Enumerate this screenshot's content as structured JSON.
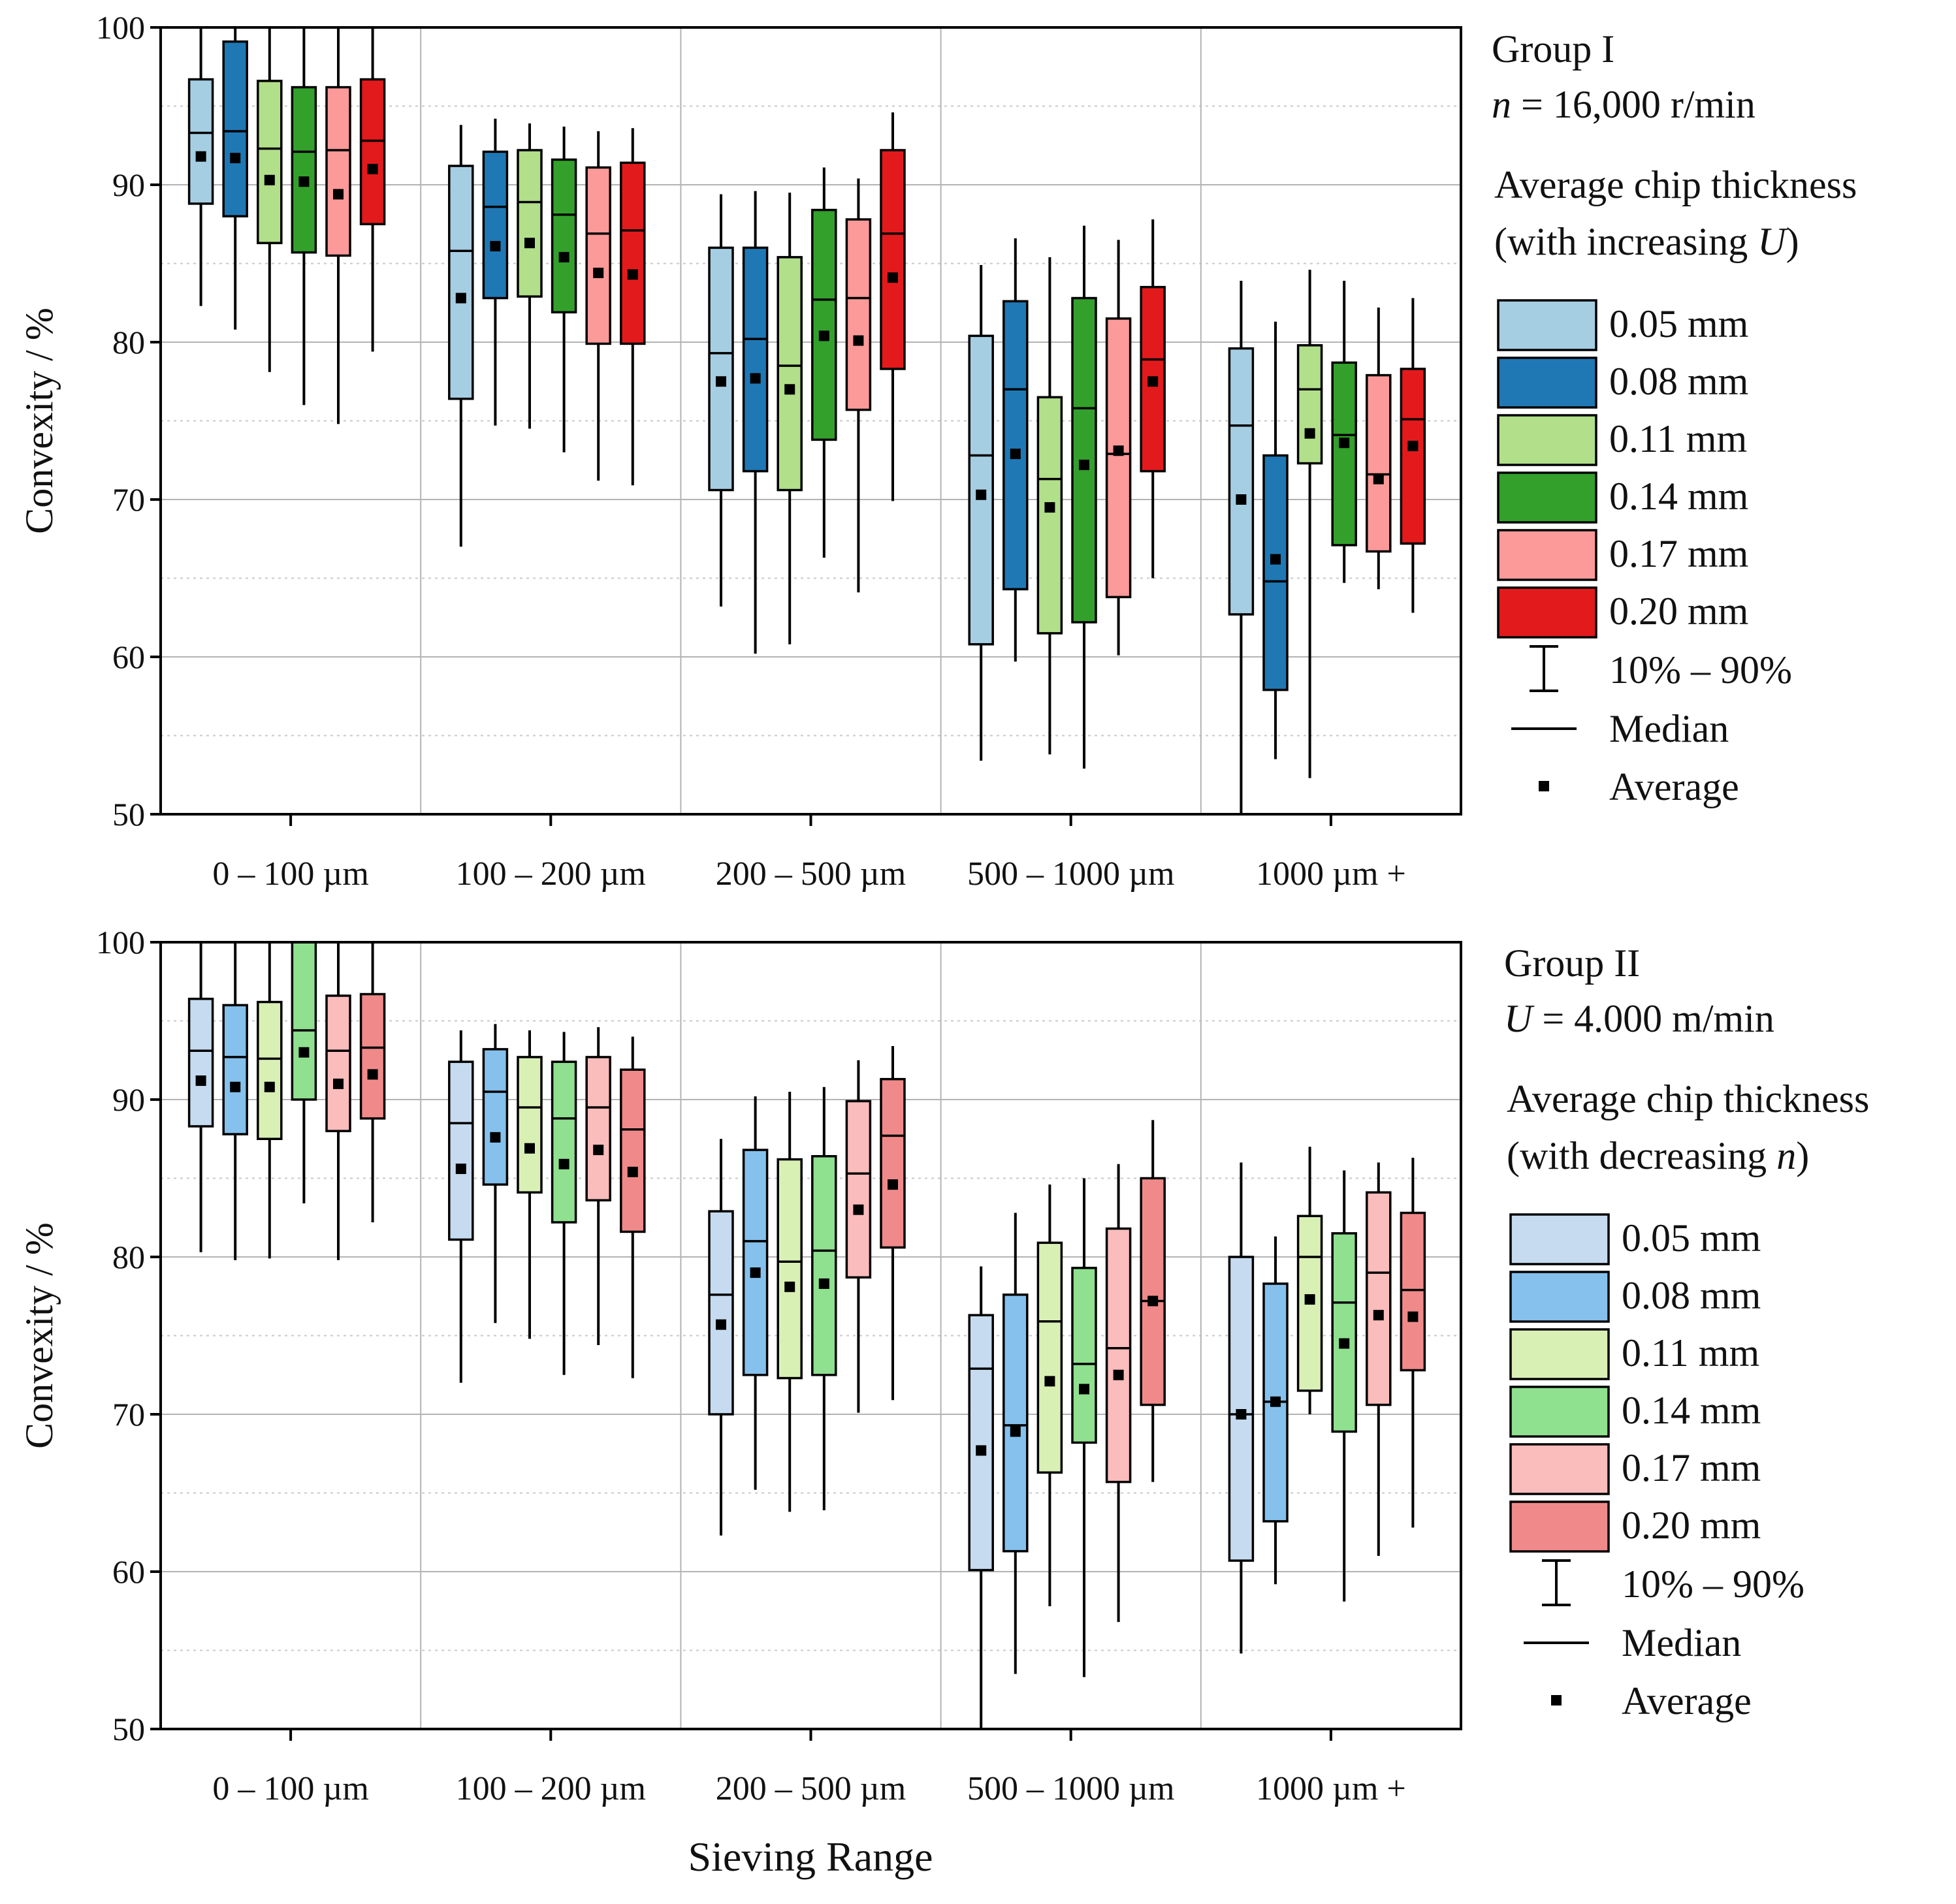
{
  "x_axis_title": "Sieving Range",
  "legend_symbols": {
    "range": "10% – 90%",
    "median": "Median",
    "average": "Average"
  },
  "chart_data": [
    {
      "type": "box",
      "group_title": "Group I",
      "condition": {
        "var": "n",
        "value": " = 16,000 r/min"
      },
      "legend_title_line1": "Average chip thickness",
      "legend_title_line2_prefix": "(with increasing ",
      "legend_title_line2_var": "U",
      "legend_title_line2_suffix": ")",
      "ylabel": "Convexity / %",
      "ylim": [
        50,
        100
      ],
      "yticks": [
        50,
        60,
        70,
        80,
        90,
        100
      ],
      "ytick_labels": [
        "50",
        "60",
        "70",
        "80",
        "90",
        "100"
      ],
      "categories": [
        "0 – 100 µm",
        "100 – 200 µm",
        "200 – 500 µm",
        "500 – 1000 µm",
        "1000 µm +"
      ],
      "series": [
        {
          "name": "0.05 mm",
          "color": "#a6cee3",
          "stats": [
            {
              "p10": 82.3,
              "q1": 88.8,
              "median": 93.3,
              "q3": 96.7,
              "p90": 100,
              "mean": 91.8
            },
            {
              "p10": 67.0,
              "q1": 76.4,
              "median": 85.8,
              "q3": 91.2,
              "p90": 93.8,
              "mean": 82.8
            },
            {
              "p10": 63.2,
              "q1": 70.6,
              "median": 79.3,
              "q3": 86.0,
              "p90": 89.4,
              "mean": 77.5
            },
            {
              "p10": 53.4,
              "q1": 60.8,
              "median": 72.8,
              "q3": 80.4,
              "p90": 84.9,
              "mean": 70.3
            },
            {
              "p10": 50.0,
              "q1": 62.7,
              "median": 74.7,
              "q3": 79.6,
              "p90": 83.9,
              "mean": 70.0
            }
          ]
        },
        {
          "name": "0.08 mm",
          "color": "#1f78b4",
          "stats": [
            {
              "p10": 80.8,
              "q1": 88.0,
              "median": 93.4,
              "q3": 99.1,
              "p90": 100,
              "mean": 91.7
            },
            {
              "p10": 74.7,
              "q1": 82.8,
              "median": 88.6,
              "q3": 92.1,
              "p90": 94.2,
              "mean": 86.1
            },
            {
              "p10": 60.2,
              "q1": 71.8,
              "median": 80.2,
              "q3": 86.0,
              "p90": 89.6,
              "mean": 77.7
            },
            {
              "p10": 59.7,
              "q1": 64.3,
              "median": 77.0,
              "q3": 82.6,
              "p90": 86.6,
              "mean": 72.9
            },
            {
              "p10": 53.5,
              "q1": 57.9,
              "median": 64.8,
              "q3": 72.8,
              "p90": 81.3,
              "mean": 66.2
            }
          ]
        },
        {
          "name": "0.11 mm",
          "color": "#b2df8a",
          "stats": [
            {
              "p10": 78.1,
              "q1": 86.3,
              "median": 92.3,
              "q3": 96.6,
              "p90": 100,
              "mean": 90.3
            },
            {
              "p10": 74.5,
              "q1": 82.9,
              "median": 88.9,
              "q3": 92.2,
              "p90": 93.9,
              "mean": 86.3
            },
            {
              "p10": 60.8,
              "q1": 70.6,
              "median": 78.5,
              "q3": 85.4,
              "p90": 89.5,
              "mean": 77.0
            },
            {
              "p10": 53.8,
              "q1": 61.5,
              "median": 71.3,
              "q3": 76.5,
              "p90": 85.4,
              "mean": 69.5
            },
            {
              "p10": 52.3,
              "q1": 72.3,
              "median": 77.0,
              "q3": 79.8,
              "p90": 84.6,
              "mean": 74.2
            }
          ]
        },
        {
          "name": "0.14 mm",
          "color": "#33a02c",
          "stats": [
            {
              "p10": 76.0,
              "q1": 85.7,
              "median": 92.1,
              "q3": 96.2,
              "p90": 100,
              "mean": 90.2
            },
            {
              "p10": 73.0,
              "q1": 81.9,
              "median": 88.1,
              "q3": 91.6,
              "p90": 93.7,
              "mean": 85.4
            },
            {
              "p10": 66.3,
              "q1": 73.8,
              "median": 82.7,
              "q3": 88.4,
              "p90": 91.1,
              "mean": 80.4
            },
            {
              "p10": 52.9,
              "q1": 62.2,
              "median": 75.8,
              "q3": 82.8,
              "p90": 87.4,
              "mean": 72.2
            },
            {
              "p10": 64.7,
              "q1": 67.1,
              "median": 74.1,
              "q3": 78.7,
              "p90": 83.9,
              "mean": 73.6
            }
          ]
        },
        {
          "name": "0.17 mm",
          "color": "#fb9a99",
          "stats": [
            {
              "p10": 74.8,
              "q1": 85.5,
              "median": 92.2,
              "q3": 96.2,
              "p90": 100,
              "mean": 89.4
            },
            {
              "p10": 71.2,
              "q1": 79.9,
              "median": 86.9,
              "q3": 91.1,
              "p90": 93.4,
              "mean": 84.4
            },
            {
              "p10": 64.1,
              "q1": 75.7,
              "median": 82.8,
              "q3": 87.8,
              "p90": 90.4,
              "mean": 80.1
            },
            {
              "p10": 60.1,
              "q1": 63.8,
              "median": 72.9,
              "q3": 81.5,
              "p90": 86.5,
              "mean": 73.1
            },
            {
              "p10": 64.3,
              "q1": 66.7,
              "median": 71.6,
              "q3": 77.9,
              "p90": 82.2,
              "mean": 71.3
            }
          ]
        },
        {
          "name": "0.20 mm",
          "color": "#e31a1c",
          "stats": [
            {
              "p10": 79.4,
              "q1": 87.5,
              "median": 92.8,
              "q3": 96.7,
              "p90": 100,
              "mean": 91.0
            },
            {
              "p10": 70.9,
              "q1": 79.9,
              "median": 87.1,
              "q3": 91.4,
              "p90": 93.6,
              "mean": 84.3
            },
            {
              "p10": 69.9,
              "q1": 78.3,
              "median": 86.9,
              "q3": 92.2,
              "p90": 94.6,
              "mean": 84.1
            },
            {
              "p10": 65.0,
              "q1": 71.8,
              "median": 78.9,
              "q3": 83.5,
              "p90": 87.8,
              "mean": 77.5
            },
            {
              "p10": 62.8,
              "q1": 67.2,
              "median": 75.1,
              "q3": 78.3,
              "p90": 82.8,
              "mean": 73.4
            }
          ]
        }
      ]
    },
    {
      "type": "box",
      "group_title": "Group II",
      "condition": {
        "var": "U",
        "value": " = 4.000 m/min"
      },
      "legend_title_line1": "Average chip thickness",
      "legend_title_line2_prefix": "(with decreasing ",
      "legend_title_line2_var": "n",
      "legend_title_line2_suffix": ")",
      "ylabel": "Convexity / %",
      "ylim": [
        50,
        100
      ],
      "yticks": [
        50,
        60,
        70,
        80,
        90,
        100
      ],
      "ytick_labels": [
        "50",
        "60",
        "70",
        "80",
        "90",
        "100"
      ],
      "categories": [
        "0 – 100 µm",
        "100 – 200 µm",
        "200 – 500 µm",
        "500 – 1000 µm",
        "1000 µm +"
      ],
      "series": [
        {
          "name": "0.05 mm",
          "color": "#c6dbef",
          "stats": [
            {
              "p10": 80.3,
              "q1": 88.3,
              "median": 93.1,
              "q3": 96.4,
              "p90": 100,
              "mean": 91.2
            },
            {
              "p10": 72.0,
              "q1": 81.1,
              "median": 88.5,
              "q3": 92.4,
              "p90": 94.4,
              "mean": 85.6
            },
            {
              "p10": 62.3,
              "q1": 70.0,
              "median": 77.6,
              "q3": 82.9,
              "p90": 87.5,
              "mean": 75.7
            },
            {
              "p10": 50.0,
              "q1": 60.1,
              "median": 72.9,
              "q3": 76.3,
              "p90": 79.4,
              "mean": 67.7
            },
            {
              "p10": 54.8,
              "q1": 60.7,
              "median": 70.0,
              "q3": 80.0,
              "p90": 86.0,
              "mean": 70.0
            }
          ]
        },
        {
          "name": "0.08 mm",
          "color": "#85c1ec",
          "stats": [
            {
              "p10": 79.8,
              "q1": 87.8,
              "median": 92.7,
              "q3": 96.0,
              "p90": 100,
              "mean": 90.8
            },
            {
              "p10": 75.8,
              "q1": 84.6,
              "median": 90.5,
              "q3": 93.2,
              "p90": 94.8,
              "mean": 87.6
            },
            {
              "p10": 65.2,
              "q1": 72.5,
              "median": 81.0,
              "q3": 86.8,
              "p90": 90.2,
              "mean": 79.0
            },
            {
              "p10": 53.5,
              "q1": 61.3,
              "median": 69.3,
              "q3": 77.6,
              "p90": 82.8,
              "mean": 68.9
            },
            {
              "p10": 59.2,
              "q1": 63.2,
              "median": 70.8,
              "q3": 78.3,
              "p90": 81.3,
              "mean": 70.8
            }
          ]
        },
        {
          "name": "0.11 mm",
          "color": "#d9f0b5",
          "stats": [
            {
              "p10": 79.9,
              "q1": 87.5,
              "median": 92.6,
              "q3": 96.2,
              "p90": 100,
              "mean": 90.8
            },
            {
              "p10": 74.8,
              "q1": 84.1,
              "median": 89.5,
              "q3": 92.7,
              "p90": 94.4,
              "mean": 86.9
            },
            {
              "p10": 63.8,
              "q1": 72.3,
              "median": 79.7,
              "q3": 86.2,
              "p90": 90.5,
              "mean": 78.1
            },
            {
              "p10": 57.8,
              "q1": 66.3,
              "median": 75.9,
              "q3": 80.9,
              "p90": 84.6,
              "mean": 72.1
            },
            {
              "p10": 70.0,
              "q1": 71.5,
              "median": 80.0,
              "q3": 82.6,
              "p90": 87.0,
              "mean": 77.3
            }
          ]
        },
        {
          "name": "0.14 mm",
          "color": "#8fe08f",
          "stats": [
            {
              "p10": 83.4,
              "q1": 90.0,
              "median": 94.4,
              "q3": 100,
              "p90": 100,
              "mean": 93.0
            },
            {
              "p10": 72.5,
              "q1": 82.2,
              "median": 88.8,
              "q3": 92.4,
              "p90": 94.3,
              "mean": 85.9
            },
            {
              "p10": 63.9,
              "q1": 72.5,
              "median": 80.4,
              "q3": 86.4,
              "p90": 90.8,
              "mean": 78.3
            },
            {
              "p10": 53.3,
              "q1": 68.2,
              "median": 73.2,
              "q3": 79.3,
              "p90": 85.0,
              "mean": 71.6
            },
            {
              "p10": 58.1,
              "q1": 68.9,
              "median": 77.1,
              "q3": 81.5,
              "p90": 85.5,
              "mean": 74.5
            }
          ]
        },
        {
          "name": "0.17 mm",
          "color": "#fbbcbc",
          "stats": [
            {
              "p10": 79.8,
              "q1": 88.0,
              "median": 93.1,
              "q3": 96.6,
              "p90": 100,
              "mean": 91.0
            },
            {
              "p10": 74.4,
              "q1": 83.6,
              "median": 89.5,
              "q3": 92.7,
              "p90": 94.6,
              "mean": 86.8
            },
            {
              "p10": 70.1,
              "q1": 78.7,
              "median": 85.3,
              "q3": 89.9,
              "p90": 92.5,
              "mean": 83.0
            },
            {
              "p10": 56.8,
              "q1": 65.7,
              "median": 74.2,
              "q3": 81.8,
              "p90": 85.9,
              "mean": 72.5
            },
            {
              "p10": 61.0,
              "q1": 70.6,
              "median": 79.0,
              "q3": 84.1,
              "p90": 86.0,
              "mean": 76.3
            }
          ]
        },
        {
          "name": "0.20 mm",
          "color": "#f08a8a",
          "stats": [
            {
              "p10": 82.2,
              "q1": 88.8,
              "median": 93.3,
              "q3": 96.7,
              "p90": 100,
              "mean": 91.6
            },
            {
              "p10": 72.3,
              "q1": 81.6,
              "median": 88.1,
              "q3": 91.9,
              "p90": 94.0,
              "mean": 85.4
            },
            {
              "p10": 70.9,
              "q1": 80.6,
              "median": 87.7,
              "q3": 91.3,
              "p90": 93.4,
              "mean": 84.6
            },
            {
              "p10": 65.7,
              "q1": 70.6,
              "median": 77.2,
              "q3": 85.0,
              "p90": 88.7,
              "mean": 77.2
            },
            {
              "p10": 62.8,
              "q1": 72.8,
              "median": 77.9,
              "q3": 82.8,
              "p90": 86.3,
              "mean": 76.2
            }
          ]
        }
      ]
    }
  ]
}
